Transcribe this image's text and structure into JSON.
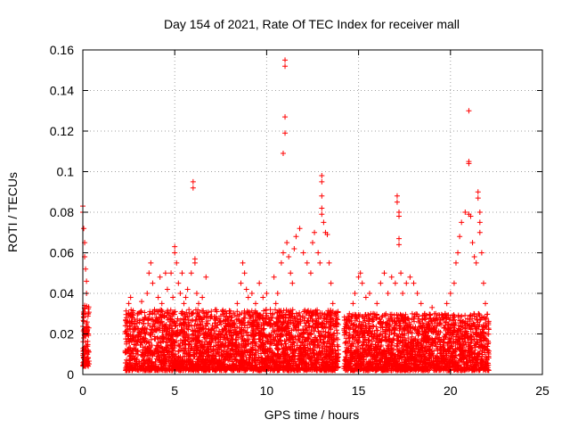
{
  "chart_data": {
    "type": "scatter",
    "title": "Day 154 of 2021, Rate Of TEC Index for receiver mall",
    "xlabel": "GPS time / hours",
    "ylabel": "ROTI / TECUs",
    "xlim": [
      0,
      25
    ],
    "ylim": [
      0,
      0.16
    ],
    "x_ticks": [
      0,
      5,
      10,
      15,
      20,
      25
    ],
    "x_tick_labels": [
      "0",
      "5",
      "10",
      "15",
      "20",
      "25"
    ],
    "y_ticks": [
      0,
      0.02,
      0.04,
      0.06,
      0.08,
      0.1,
      0.12,
      0.14,
      0.16
    ],
    "y_tick_labels": [
      "0",
      "0.02",
      "0.04",
      "0.06",
      "0.08",
      "0.1",
      "0.12",
      "0.14",
      "0.16"
    ],
    "grid": true,
    "marker": "+",
    "color": "#ff0000",
    "series": [
      {
        "name": "ROTI",
        "points": [
          [
            0.0,
            0.083
          ],
          [
            0.0,
            0.08
          ],
          [
            0.05,
            0.072
          ],
          [
            0.1,
            0.065
          ],
          [
            0.1,
            0.058
          ],
          [
            0.15,
            0.052
          ],
          [
            0.2,
            0.046
          ],
          [
            0.2,
            0.04
          ],
          [
            0.1,
            0.034
          ],
          [
            0.15,
            0.03
          ],
          [
            0.05,
            0.028
          ],
          [
            0.2,
            0.025
          ],
          [
            0.1,
            0.022
          ],
          [
            0.25,
            0.02
          ],
          [
            0.05,
            0.018
          ],
          [
            0.15,
            0.016
          ],
          [
            0.2,
            0.014
          ],
          [
            0.1,
            0.012
          ],
          [
            0.25,
            0.01
          ],
          [
            0.05,
            0.008
          ],
          [
            0.15,
            0.006
          ],
          [
            0.2,
            0.005
          ],
          [
            0.3,
            0.03
          ],
          [
            0.3,
            0.02
          ],
          [
            0.28,
            0.012
          ],
          [
            2.4,
            0.02
          ],
          [
            2.5,
            0.035
          ],
          [
            2.6,
            0.038
          ],
          [
            2.7,
            0.028
          ],
          [
            2.8,
            0.022
          ],
          [
            2.9,
            0.015
          ],
          [
            3.0,
            0.03
          ],
          [
            3.2,
            0.036
          ],
          [
            3.3,
            0.025
          ],
          [
            3.5,
            0.04
          ],
          [
            3.6,
            0.05
          ],
          [
            3.7,
            0.055
          ],
          [
            3.8,
            0.045
          ],
          [
            3.9,
            0.032
          ],
          [
            4.0,
            0.028
          ],
          [
            4.1,
            0.038
          ],
          [
            4.2,
            0.048
          ],
          [
            4.3,
            0.035
          ],
          [
            4.5,
            0.05
          ],
          [
            4.6,
            0.042
          ],
          [
            4.7,
            0.03
          ],
          [
            4.8,
            0.05
          ],
          [
            4.9,
            0.038
          ],
          [
            5.0,
            0.063
          ],
          [
            5.0,
            0.06
          ],
          [
            5.1,
            0.055
          ],
          [
            5.2,
            0.045
          ],
          [
            5.3,
            0.04
          ],
          [
            5.4,
            0.05
          ],
          [
            5.5,
            0.035
          ],
          [
            5.6,
            0.038
          ],
          [
            5.7,
            0.042
          ],
          [
            5.8,
            0.03
          ],
          [
            5.9,
            0.05
          ],
          [
            6.0,
            0.095
          ],
          [
            6.0,
            0.092
          ],
          [
            6.1,
            0.057
          ],
          [
            6.1,
            0.055
          ],
          [
            6.2,
            0.04
          ],
          [
            6.3,
            0.035
          ],
          [
            6.4,
            0.028
          ],
          [
            6.5,
            0.038
          ],
          [
            6.6,
            0.03
          ],
          [
            6.7,
            0.048
          ],
          [
            6.8,
            0.025
          ],
          [
            6.9,
            0.02
          ],
          [
            7.0,
            0.022
          ],
          [
            7.2,
            0.018
          ],
          [
            7.4,
            0.02
          ],
          [
            7.6,
            0.015
          ],
          [
            7.8,
            0.022
          ],
          [
            8.0,
            0.03
          ],
          [
            8.2,
            0.025
          ],
          [
            8.4,
            0.035
          ],
          [
            8.6,
            0.045
          ],
          [
            8.7,
            0.055
          ],
          [
            8.8,
            0.05
          ],
          [
            8.9,
            0.042
          ],
          [
            9.0,
            0.038
          ],
          [
            9.2,
            0.04
          ],
          [
            9.4,
            0.035
          ],
          [
            9.5,
            0.03
          ],
          [
            9.6,
            0.045
          ],
          [
            9.8,
            0.038
          ],
          [
            10.0,
            0.04
          ],
          [
            10.2,
            0.032
          ],
          [
            10.4,
            0.048
          ],
          [
            10.5,
            0.035
          ],
          [
            10.6,
            0.04
          ],
          [
            10.8,
            0.055
          ],
          [
            10.9,
            0.06
          ],
          [
            11.0,
            0.155
          ],
          [
            11.0,
            0.152
          ],
          [
            11.0,
            0.127
          ],
          [
            11.0,
            0.119
          ],
          [
            10.9,
            0.109
          ],
          [
            11.1,
            0.065
          ],
          [
            11.2,
            0.058
          ],
          [
            11.3,
            0.05
          ],
          [
            11.4,
            0.045
          ],
          [
            11.5,
            0.062
          ],
          [
            11.6,
            0.068
          ],
          [
            11.8,
            0.072
          ],
          [
            12.0,
            0.06
          ],
          [
            12.2,
            0.055
          ],
          [
            12.4,
            0.05
          ],
          [
            12.5,
            0.065
          ],
          [
            12.6,
            0.07
          ],
          [
            12.8,
            0.06
          ],
          [
            12.9,
            0.055
          ],
          [
            13.0,
            0.098
          ],
          [
            13.0,
            0.095
          ],
          [
            13.0,
            0.088
          ],
          [
            13.0,
            0.082
          ],
          [
            13.0,
            0.079
          ],
          [
            13.1,
            0.075
          ],
          [
            13.2,
            0.07
          ],
          [
            13.3,
            0.069
          ],
          [
            13.4,
            0.055
          ],
          [
            13.5,
            0.045
          ],
          [
            13.6,
            0.035
          ],
          [
            13.7,
            0.03
          ],
          [
            13.8,
            0.018
          ],
          [
            13.9,
            0.01
          ],
          [
            14.3,
            0.025
          ],
          [
            14.5,
            0.03
          ],
          [
            14.7,
            0.035
          ],
          [
            14.8,
            0.04
          ],
          [
            15.0,
            0.048
          ],
          [
            15.1,
            0.05
          ],
          [
            15.2,
            0.045
          ],
          [
            15.4,
            0.038
          ],
          [
            15.6,
            0.04
          ],
          [
            15.8,
            0.03
          ],
          [
            16.0,
            0.035
          ],
          [
            16.2,
            0.045
          ],
          [
            16.4,
            0.05
          ],
          [
            16.6,
            0.04
          ],
          [
            16.8,
            0.048
          ],
          [
            17.0,
            0.045
          ],
          [
            17.1,
            0.088
          ],
          [
            17.1,
            0.085
          ],
          [
            17.2,
            0.08
          ],
          [
            17.2,
            0.078
          ],
          [
            17.2,
            0.067
          ],
          [
            17.2,
            0.064
          ],
          [
            17.3,
            0.05
          ],
          [
            17.4,
            0.04
          ],
          [
            17.6,
            0.045
          ],
          [
            17.8,
            0.048
          ],
          [
            18.0,
            0.045
          ],
          [
            18.2,
            0.04
          ],
          [
            18.4,
            0.035
          ],
          [
            18.6,
            0.03
          ],
          [
            18.8,
            0.025
          ],
          [
            19.0,
            0.033
          ],
          [
            19.2,
            0.03
          ],
          [
            19.4,
            0.025
          ],
          [
            19.6,
            0.028
          ],
          [
            19.8,
            0.035
          ],
          [
            20.0,
            0.04
          ],
          [
            20.2,
            0.045
          ],
          [
            20.3,
            0.055
          ],
          [
            20.4,
            0.06
          ],
          [
            20.5,
            0.068
          ],
          [
            20.6,
            0.075
          ],
          [
            20.8,
            0.08
          ],
          [
            21.0,
            0.13
          ],
          [
            21.0,
            0.105
          ],
          [
            21.0,
            0.104
          ],
          [
            21.0,
            0.079
          ],
          [
            21.1,
            0.078
          ],
          [
            21.2,
            0.065
          ],
          [
            21.3,
            0.058
          ],
          [
            21.4,
            0.055
          ],
          [
            21.5,
            0.09
          ],
          [
            21.5,
            0.087
          ],
          [
            21.6,
            0.08
          ],
          [
            21.6,
            0.075
          ],
          [
            21.6,
            0.07
          ],
          [
            21.7,
            0.06
          ],
          [
            21.8,
            0.045
          ],
          [
            21.9,
            0.035
          ],
          [
            22.0,
            0.02
          ],
          [
            22.0,
            0.012
          ]
        ],
        "dense_bands": [
          {
            "x_range": [
              0.0,
              0.35
            ],
            "y_range": [
              0.004,
              0.034
            ]
          },
          {
            "x_range": [
              2.3,
              13.9
            ],
            "y_range": [
              0.002,
              0.032
            ]
          },
          {
            "x_range": [
              14.2,
              22.1
            ],
            "y_range": [
              0.002,
              0.03
            ]
          }
        ]
      }
    ]
  }
}
